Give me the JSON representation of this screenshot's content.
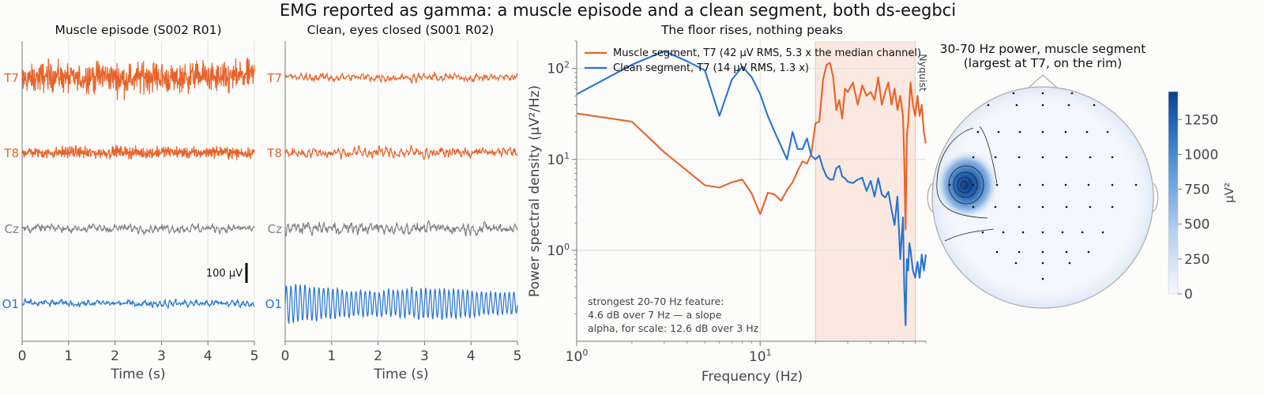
{
  "suptitle": "EMG reported as gamma: a muscle episode and a clean segment, both ds-eegbci",
  "colors": {
    "orange": "#e8632a",
    "blue": "#2574d4",
    "gray": "#808080",
    "band": "#fbe8e0"
  },
  "chart_data": [
    {
      "type": "line",
      "title": "Muscle episode  (S002 R01)",
      "xlabel": "Time (s)",
      "xlim": [
        0,
        5
      ],
      "xticks": [
        "0",
        "1",
        "2",
        "3",
        "4",
        "5"
      ],
      "channels": [
        {
          "name": "T7",
          "color": "#e8632a",
          "amplitude_uv": 42,
          "style": "emg"
        },
        {
          "name": "T8",
          "color": "#e8632a",
          "amplitude_uv": 16,
          "style": "emg"
        },
        {
          "name": "Cz",
          "color": "#808080",
          "amplitude_uv": 14,
          "style": "eeg"
        },
        {
          "name": "O1",
          "color": "#2574d4",
          "amplitude_uv": 12,
          "style": "eeg"
        }
      ],
      "scalebar_label": "100 µV"
    },
    {
      "type": "line",
      "title": "Clean, eyes closed  (S001 R02)",
      "xlabel": "Time (s)",
      "xlim": [
        0,
        5
      ],
      "xticks": [
        "0",
        "1",
        "2",
        "3",
        "4",
        "5"
      ],
      "channels": [
        {
          "name": "T7",
          "color": "#e8632a",
          "amplitude_uv": 14,
          "style": "eeg"
        },
        {
          "name": "T8",
          "color": "#e8632a",
          "amplitude_uv": 20,
          "style": "eeg"
        },
        {
          "name": "Cz",
          "color": "#808080",
          "amplitude_uv": 20,
          "style": "eeg"
        },
        {
          "name": "O1",
          "color": "#2574d4",
          "amplitude_uv": 45,
          "style": "alpha"
        }
      ]
    },
    {
      "type": "line",
      "title": "The floor rises, nothing peaks",
      "xlabel": "Frequency (Hz)",
      "ylabel": "Power spectral density (µV²/Hz)",
      "xscale": "log",
      "yscale": "log",
      "xlim": [
        1,
        80
      ],
      "ylim": [
        0.1,
        200
      ],
      "xticks": [
        {
          "v": 1,
          "base": "10",
          "exp": "0"
        },
        {
          "v": 10,
          "base": "10",
          "exp": "1"
        }
      ],
      "yticks": [
        {
          "v": 1,
          "base": "10",
          "exp": "0"
        },
        {
          "v": 10,
          "base": "10",
          "exp": "1"
        },
        {
          "v": 100,
          "base": "10",
          "exp": "2"
        }
      ],
      "band": [
        20,
        70
      ],
      "band_label": "Nyquist",
      "grid": true,
      "legend_position": "top-left",
      "series": [
        {
          "name": "Muscle segment, T7  (42 µV RMS, 5.3 x the median channel)",
          "color": "#e8632a",
          "x": [
            1,
            2,
            3,
            4,
            5,
            6,
            7,
            8,
            9,
            10,
            11,
            12,
            13,
            14,
            15,
            16,
            17,
            18,
            19,
            20,
            21,
            22,
            23,
            24,
            25,
            26,
            27,
            28,
            29,
            30,
            32,
            34,
            36,
            38,
            40,
            42,
            44,
            46,
            48,
            50,
            52,
            54,
            56,
            58,
            60,
            61,
            62,
            63,
            64,
            66,
            68,
            70,
            72,
            74,
            76,
            78,
            80
          ],
          "y": [
            32,
            26,
            12,
            7.5,
            5.2,
            4.9,
            5.6,
            6,
            4.2,
            2.5,
            4.3,
            4.1,
            3.5,
            4.6,
            5.6,
            7.5,
            9.5,
            9,
            11.5,
            25,
            26,
            75,
            110,
            115,
            80,
            35,
            45,
            28,
            60,
            55,
            70,
            40,
            65,
            50,
            55,
            45,
            80,
            40,
            55,
            70,
            40,
            60,
            35,
            50,
            30,
            10,
            1.7,
            18,
            25,
            70,
            40,
            30,
            50,
            30,
            40,
            20,
            15
          ]
        },
        {
          "name": "Clean segment, T7  (14 µV RMS, 1.3 x)",
          "color": "#2574d4",
          "x": [
            1,
            2,
            3,
            4,
            5,
            6,
            7,
            8,
            9,
            10,
            11,
            12,
            13,
            14,
            15,
            16,
            17,
            18,
            19,
            20,
            21,
            22,
            23,
            24,
            25,
            26,
            27,
            28,
            29,
            30,
            32,
            34,
            36,
            38,
            40,
            42,
            44,
            46,
            48,
            50,
            52,
            54,
            56,
            58,
            60,
            61,
            62,
            63,
            64,
            65,
            66,
            68,
            70,
            72,
            74,
            76,
            78,
            80
          ],
          "y": [
            52,
            110,
            155,
            120,
            95,
            30,
            75,
            105,
            80,
            52,
            30,
            20,
            14,
            10,
            20,
            13,
            13,
            17,
            11,
            10,
            11,
            8,
            6.5,
            6,
            6,
            8,
            8.5,
            6.5,
            6.2,
            5.7,
            5.5,
            6,
            6.3,
            4.5,
            5.8,
            3.9,
            6.2,
            4.1,
            3.8,
            4.4,
            2.8,
            1.9,
            3.9,
            0.8,
            2.3,
            0.4,
            0.15,
            0.8,
            0.6,
            1.2,
            1,
            0.6,
            0.5,
            0.75,
            0.5,
            0.9,
            0.6,
            0.9
          ]
        }
      ],
      "annotation": [
        "strongest 20-70 Hz feature:",
        "4.6 dB over 7 Hz — a slope",
        "alpha, for scale: 12.6 dB over 3 Hz"
      ]
    },
    {
      "type": "heatmap",
      "title": [
        "30-70 Hz power, muscle segment",
        "(largest at T7, on the rim)"
      ],
      "colorbar_label": "µV²",
      "colorbar_range": [
        0,
        1450
      ],
      "colorbar_ticks": [
        "0",
        "250",
        "500",
        "750",
        "1000",
        "1250"
      ],
      "peak_channel": "T7"
    }
  ]
}
